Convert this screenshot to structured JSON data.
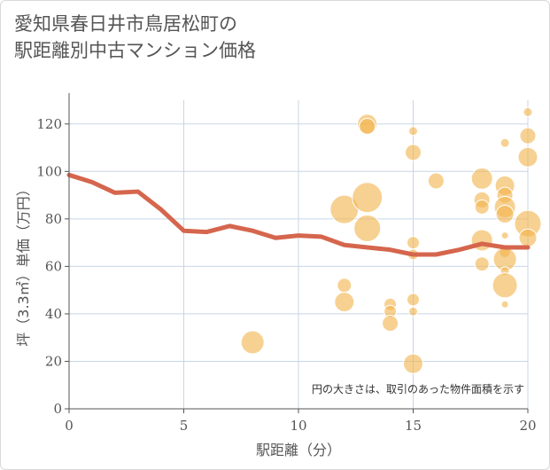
{
  "title_lines": [
    "愛知県春日井市鳥居松町の",
    "駅距離別中古マンション価格"
  ],
  "chart_data": {
    "type": "scatter",
    "title": "愛知県春日井市鳥居松町の駅距離別中古マンション価格",
    "xlabel": "駅距離（分）",
    "ylabel": "坪（3.3㎡）単価（万円）",
    "xlim": [
      0,
      20
    ],
    "ylim": [
      0,
      130
    ],
    "x_ticks": [
      0,
      5,
      10,
      15,
      20
    ],
    "y_ticks": [
      0,
      20,
      40,
      60,
      80,
      100,
      120
    ],
    "grid": true,
    "note": "円の大きさは、取引のあった物件面積を示す",
    "colors": {
      "bubble": "#f2b24a",
      "line": "#d5664d",
      "grid": "#c8d6e6",
      "axis": "#555555"
    },
    "line_series": {
      "x": [
        0,
        1,
        2,
        3,
        4,
        5,
        6,
        7,
        8,
        9,
        10,
        11,
        12,
        13,
        14,
        15,
        16,
        17,
        18,
        19,
        20
      ],
      "y": [
        98.5,
        95.5,
        91,
        91.5,
        84,
        75,
        74.5,
        77,
        75,
        72,
        73,
        72.5,
        69,
        68,
        67,
        65,
        65,
        67,
        69.5,
        68,
        68
      ]
    },
    "bubbles": [
      {
        "x": 8,
        "y": 28,
        "r": 13
      },
      {
        "x": 12,
        "y": 52,
        "r": 8
      },
      {
        "x": 12,
        "y": 45,
        "r": 11
      },
      {
        "x": 12,
        "y": 84,
        "r": 16
      },
      {
        "x": 13,
        "y": 120,
        "r": 11
      },
      {
        "x": 13,
        "y": 119,
        "r": 9
      },
      {
        "x": 13,
        "y": 89,
        "r": 17
      },
      {
        "x": 13,
        "y": 76,
        "r": 15
      },
      {
        "x": 14,
        "y": 44,
        "r": 7
      },
      {
        "x": 14,
        "y": 41,
        "r": 7
      },
      {
        "x": 14,
        "y": 36,
        "r": 9
      },
      {
        "x": 15,
        "y": 117,
        "r": 5
      },
      {
        "x": 15,
        "y": 108,
        "r": 9
      },
      {
        "x": 15,
        "y": 70,
        "r": 7
      },
      {
        "x": 15,
        "y": 65,
        "r": 6
      },
      {
        "x": 15,
        "y": 46,
        "r": 7
      },
      {
        "x": 15,
        "y": 41,
        "r": 5
      },
      {
        "x": 15,
        "y": 19,
        "r": 11
      },
      {
        "x": 16,
        "y": 96,
        "r": 9
      },
      {
        "x": 18,
        "y": 97,
        "r": 12
      },
      {
        "x": 18,
        "y": 88,
        "r": 9
      },
      {
        "x": 18,
        "y": 85,
        "r": 8
      },
      {
        "x": 18,
        "y": 71,
        "r": 12
      },
      {
        "x": 18,
        "y": 61,
        "r": 8
      },
      {
        "x": 19,
        "y": 112,
        "r": 5
      },
      {
        "x": 19,
        "y": 94,
        "r": 11
      },
      {
        "x": 19,
        "y": 90,
        "r": 9
      },
      {
        "x": 19,
        "y": 85,
        "r": 12
      },
      {
        "x": 19,
        "y": 82,
        "r": 10
      },
      {
        "x": 19,
        "y": 73,
        "r": 4
      },
      {
        "x": 19,
        "y": 66,
        "r": 6
      },
      {
        "x": 19,
        "y": 63,
        "r": 13
      },
      {
        "x": 19,
        "y": 58,
        "r": 5
      },
      {
        "x": 19,
        "y": 52,
        "r": 14
      },
      {
        "x": 19,
        "y": 44,
        "r": 4
      },
      {
        "x": 20,
        "y": 125,
        "r": 5
      },
      {
        "x": 20,
        "y": 115,
        "r": 9
      },
      {
        "x": 20,
        "y": 106,
        "r": 11
      },
      {
        "x": 20,
        "y": 78,
        "r": 15
      },
      {
        "x": 20,
        "y": 72,
        "r": 10
      }
    ]
  }
}
